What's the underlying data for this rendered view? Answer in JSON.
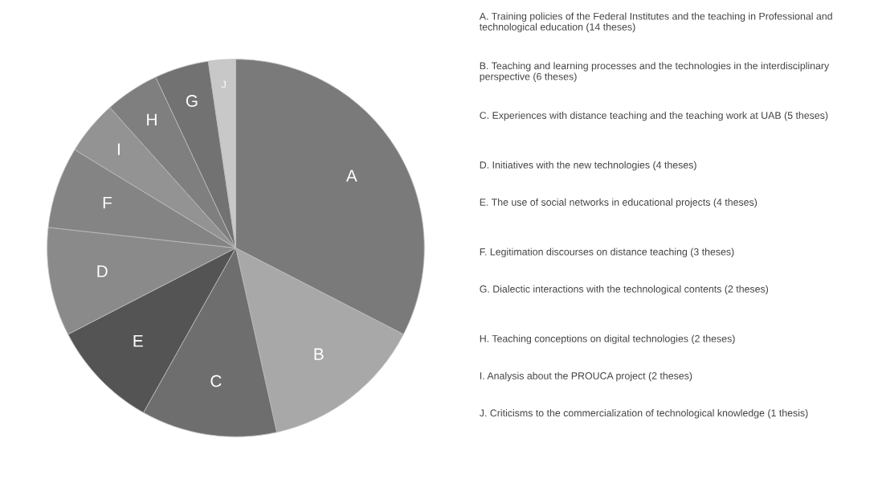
{
  "chart_data": {
    "type": "pie",
    "categories": [
      "A",
      "B",
      "C",
      "E",
      "D",
      "F",
      "I",
      "H",
      "G",
      "J"
    ],
    "values": [
      32.56,
      13.95,
      11.63,
      9.3,
      9.3,
      6.98,
      4.65,
      4.65,
      4.65,
      2.33
    ],
    "colors": [
      "#7a7a7a",
      "#a8a8a8",
      "#6e6e6e",
      "#545454",
      "#8a8a8a",
      "#848484",
      "#939393",
      "#7f7f7f",
      "#727272",
      "#c8c8c8"
    ],
    "legend": false,
    "annotations": [
      "A. Training policies of the Federal Institutes and the teaching in Professional and technological education (14 theses)",
      "B. Teaching and learning processes and the technologies in the interdisciplinary perspective (6 theses)",
      "C. Experiences with distance teaching and the teaching work at UAB (5 theses)",
      "D. Initiatives with the new technologies (4 theses)",
      "E. The use of social networks in educational projects (4 theses)",
      "F. Legitimation discourses on distance teaching (3 theses)",
      "G. Dialectic interactions with the technological contents (2 theses)",
      "H. Teaching conceptions on digital technologies (2 theses)",
      "I. Analysis about the PROUCA project (2 theses)",
      "J. Criticisms to the commercialization of technological knowledge (1 thesis)"
    ]
  }
}
